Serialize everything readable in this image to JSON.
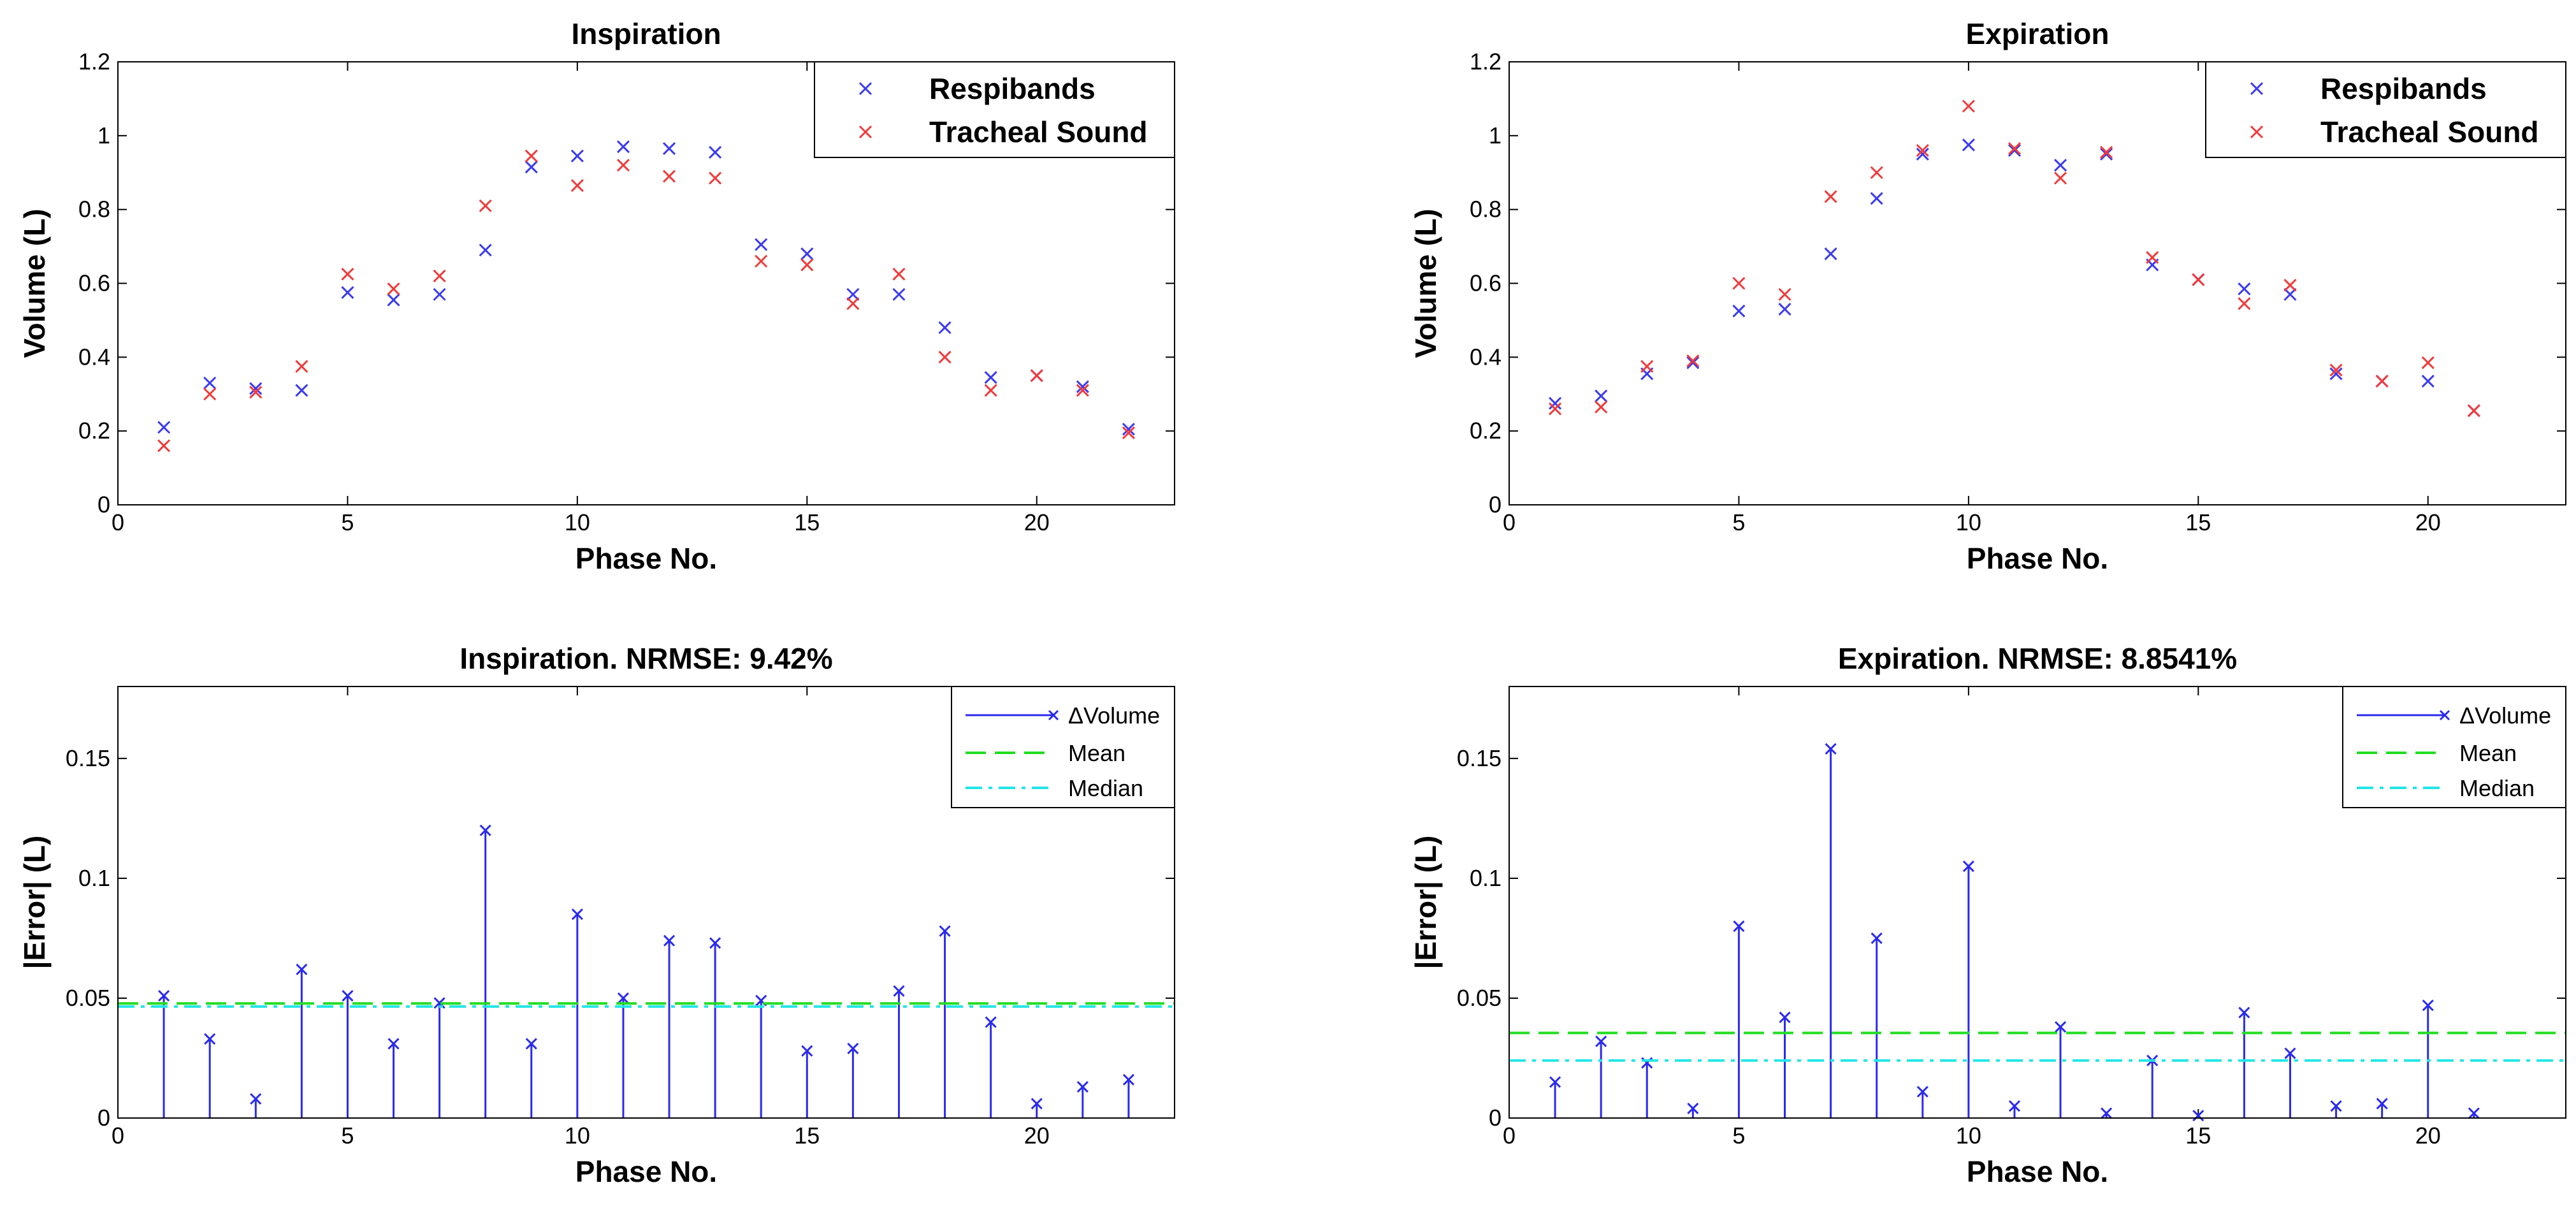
{
  "chart_data": [
    {
      "type": "scatter",
      "title": "Inspiration",
      "xlabel": "Phase No.",
      "ylabel": "Volume (L)",
      "xlim": [
        0,
        23
      ],
      "ylim": [
        0,
        1.2
      ],
      "xticks": [
        0,
        5,
        10,
        15,
        20
      ],
      "yticks": [
        0,
        0.2,
        0.4,
        0.6,
        0.8,
        1,
        1.2
      ],
      "xtick_labels": [
        "0",
        "5",
        "10",
        "15",
        "20"
      ],
      "ytick_labels": [
        "0",
        "0.2",
        "0.4",
        "0.6",
        "0.8",
        "1",
        "1.2"
      ],
      "legend_position": "top-right",
      "legend_style": "big",
      "series": [
        {
          "name": "Respibands",
          "color": "#3a3af0",
          "marker": "x",
          "x": [
            1,
            2,
            3,
            4,
            5,
            6,
            7,
            8,
            9,
            10,
            11,
            12,
            13,
            14,
            15,
            16,
            17,
            18,
            19,
            20,
            21,
            22
          ],
          "y": [
            0.21,
            0.33,
            0.315,
            0.31,
            0.575,
            0.555,
            0.57,
            0.69,
            0.915,
            0.945,
            0.97,
            0.965,
            0.955,
            0.705,
            0.68,
            0.57,
            0.57,
            0.48,
            0.345,
            0.35,
            0.32,
            0.205
          ]
        },
        {
          "name": "Tracheal Sound",
          "color": "#f03a3a",
          "marker": "x",
          "x": [
            1,
            2,
            3,
            4,
            5,
            6,
            7,
            8,
            9,
            10,
            11,
            12,
            13,
            14,
            15,
            16,
            17,
            18,
            19,
            20,
            21,
            22
          ],
          "y": [
            0.16,
            0.3,
            0.305,
            0.375,
            0.625,
            0.585,
            0.62,
            0.81,
            0.945,
            0.865,
            0.92,
            0.89,
            0.885,
            0.66,
            0.65,
            0.545,
            0.625,
            0.4,
            0.31,
            0.35,
            0.31,
            0.195
          ]
        }
      ]
    },
    {
      "type": "scatter",
      "title": "Expiration",
      "xlabel": "Phase No.",
      "ylabel": "Volume (L)",
      "xlim": [
        0,
        23
      ],
      "ylim": [
        0,
        1.2
      ],
      "xticks": [
        0,
        5,
        10,
        15,
        20
      ],
      "yticks": [
        0,
        0.2,
        0.4,
        0.6,
        0.8,
        1,
        1.2
      ],
      "xtick_labels": [
        "0",
        "5",
        "10",
        "15",
        "20"
      ],
      "ytick_labels": [
        "0",
        "0.2",
        "0.4",
        "0.6",
        "0.8",
        "1",
        "1.2"
      ],
      "legend_position": "top-right",
      "legend_style": "big",
      "series": [
        {
          "name": "Respibands",
          "color": "#3a3af0",
          "marker": "x",
          "x": [
            1,
            2,
            3,
            4,
            5,
            6,
            7,
            8,
            9,
            10,
            11,
            12,
            13,
            14,
            15,
            16,
            17,
            18,
            19,
            20,
            21
          ],
          "y": [
            0.275,
            0.295,
            0.355,
            0.385,
            0.525,
            0.53,
            0.68,
            0.83,
            0.95,
            0.975,
            0.96,
            0.92,
            0.95,
            0.65,
            0.61,
            0.585,
            0.57,
            0.355,
            0.335,
            0.335,
            0.255
          ]
        },
        {
          "name": "Tracheal Sound",
          "color": "#f03a3a",
          "marker": "x",
          "x": [
            1,
            2,
            3,
            4,
            5,
            6,
            7,
            8,
            9,
            10,
            11,
            12,
            13,
            14,
            15,
            16,
            17,
            18,
            19,
            20,
            21
          ],
          "y": [
            0.26,
            0.265,
            0.375,
            0.39,
            0.6,
            0.57,
            0.835,
            0.9,
            0.96,
            1.08,
            0.965,
            0.885,
            0.955,
            0.67,
            0.61,
            0.545,
            0.595,
            0.365,
            0.335,
            0.385,
            0.255
          ]
        }
      ]
    },
    {
      "type": "stem",
      "title": "Inspiration. NRMSE: 9.42%",
      "xlabel": "Phase No.",
      "ylabel": "|Error| (L)",
      "xlim": [
        0,
        23
      ],
      "ylim": [
        0,
        0.18
      ],
      "xticks": [
        0,
        5,
        10,
        15,
        20
      ],
      "yticks": [
        0,
        0.05,
        0.1,
        0.15
      ],
      "xtick_labels": [
        "0",
        "5",
        "10",
        "15",
        "20"
      ],
      "ytick_labels": [
        "0",
        "0.05",
        "0.1",
        "0.15"
      ],
      "legend_position": "top-right",
      "legend_style": "small",
      "series": [
        {
          "name": "ΔVolume",
          "color": "#2a2aee",
          "style": "stem",
          "x": [
            1,
            2,
            3,
            4,
            5,
            6,
            7,
            8,
            9,
            10,
            11,
            12,
            13,
            14,
            15,
            16,
            17,
            18,
            19,
            20,
            21,
            22
          ],
          "y": [
            0.051,
            0.033,
            0.008,
            0.062,
            0.051,
            0.031,
            0.048,
            0.12,
            0.031,
            0.085,
            0.05,
            0.074,
            0.073,
            0.049,
            0.028,
            0.029,
            0.053,
            0.078,
            0.04,
            0.006,
            0.013,
            0.016
          ]
        },
        {
          "name": "Mean",
          "color": "#22dd22",
          "style": "dashed",
          "value": 0.0478
        },
        {
          "name": "Median",
          "color": "#22e6e6",
          "style": "dashdot",
          "value": 0.0465
        }
      ]
    },
    {
      "type": "stem",
      "title": "Expiration. NRMSE: 8.8541%",
      "xlabel": "Phase No.",
      "ylabel": "|Error| (L)",
      "xlim": [
        0,
        23
      ],
      "ylim": [
        0,
        0.18
      ],
      "xticks": [
        0,
        5,
        10,
        15,
        20
      ],
      "yticks": [
        0,
        0.05,
        0.1,
        0.15
      ],
      "xtick_labels": [
        "0",
        "5",
        "10",
        "15",
        "20"
      ],
      "ytick_labels": [
        "0",
        "0.05",
        "0.1",
        "0.15"
      ],
      "legend_position": "top-right",
      "legend_style": "small",
      "series": [
        {
          "name": "ΔVolume",
          "color": "#2a2aee",
          "style": "stem",
          "x": [
            1,
            2,
            3,
            4,
            5,
            6,
            7,
            8,
            9,
            10,
            11,
            12,
            13,
            14,
            15,
            16,
            17,
            18,
            19,
            20,
            21
          ],
          "y": [
            0.015,
            0.032,
            0.023,
            0.004,
            0.08,
            0.042,
            0.154,
            0.075,
            0.011,
            0.105,
            0.005,
            0.038,
            0.002,
            0.024,
            0.001,
            0.044,
            0.027,
            0.005,
            0.006,
            0.047,
            0.002
          ]
        },
        {
          "name": "Mean",
          "color": "#22dd22",
          "style": "dashed",
          "value": 0.0355
        },
        {
          "name": "Median",
          "color": "#22e6e6",
          "style": "dashdot",
          "value": 0.024
        }
      ]
    }
  ]
}
